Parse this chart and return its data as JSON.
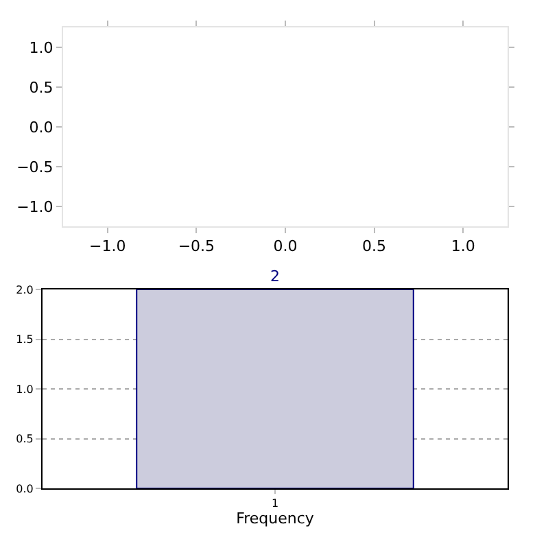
{
  "chart_data": [
    {
      "type": "scatter",
      "xlim": [
        -1.25,
        1.25
      ],
      "ylim": [
        -1.25,
        1.25
      ],
      "xticks": [
        {
          "value": -1,
          "label": "−1.0"
        },
        {
          "value": -0.5,
          "label": "−0.5"
        },
        {
          "value": 0,
          "label": "0.0"
        },
        {
          "value": 0.5,
          "label": "0.5"
        },
        {
          "value": 1,
          "label": "1.0"
        }
      ],
      "yticks": [
        {
          "value": -1,
          "label": "−1.0"
        },
        {
          "value": -0.5,
          "label": "−0.5"
        },
        {
          "value": 0,
          "label": "0.0"
        },
        {
          "value": 0.5,
          "label": "0.5"
        },
        {
          "value": 1,
          "label": "1.0"
        }
      ],
      "grid": false
    },
    {
      "type": "bar",
      "categories": [
        "1"
      ],
      "values": [
        2
      ],
      "color": "#ccccdd",
      "xlabel": "Frequency",
      "ylim": [
        0,
        2
      ],
      "yticks": [
        {
          "value": 0,
          "label": "0.0"
        },
        {
          "value": 0.5,
          "label": "0.5"
        },
        {
          "value": 1,
          "label": "1.0"
        },
        {
          "value": 1.5,
          "label": "1.5"
        },
        {
          "value": 2,
          "label": "2.0"
        }
      ],
      "grid": true,
      "data_labels": true
    }
  ]
}
